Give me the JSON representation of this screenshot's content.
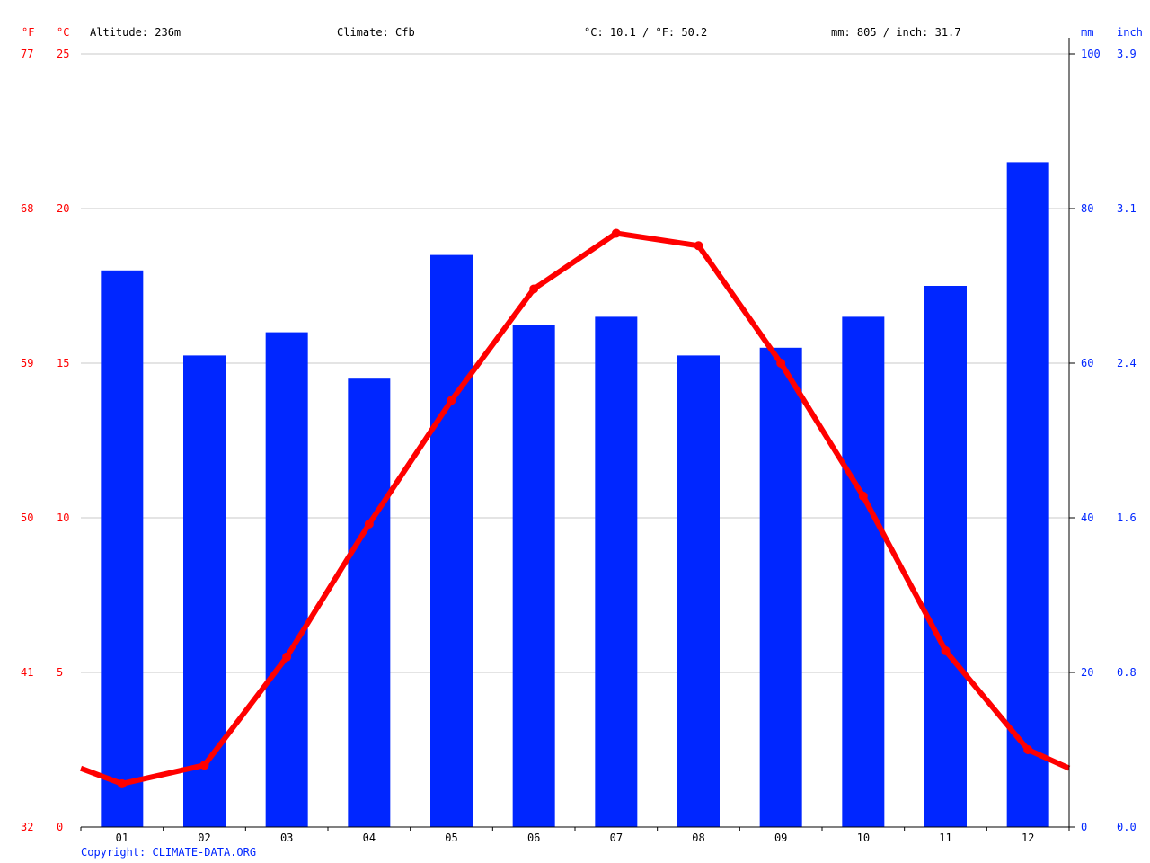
{
  "header": {
    "unit_left_f": "°F",
    "unit_left_c": "°C",
    "altitude": "Altitude: 236m",
    "climate": "Climate: Cfb",
    "temperature_avg": "°C: 10.1 / °F: 50.2",
    "precipitation_total": "mm: 805 / inch: 31.7",
    "unit_right_mm": "mm",
    "unit_right_inch": "inch"
  },
  "footer": {
    "copyright": "Copyright: CLIMATE-DATA.ORG"
  },
  "colors": {
    "temperature": "#ff0000",
    "precipitation": "#0026ff",
    "grid": "#c8c8c8",
    "axis": "#000000"
  },
  "chart_data": {
    "type": "bar+line",
    "categories": [
      "01",
      "02",
      "03",
      "04",
      "05",
      "06",
      "07",
      "08",
      "09",
      "10",
      "11",
      "12"
    ],
    "series": [
      {
        "type": "bar",
        "axis": "right",
        "values": [
          72,
          61,
          64,
          58,
          74,
          65,
          66,
          61,
          62,
          66,
          70,
          86
        ]
      },
      {
        "type": "line",
        "axis": "left",
        "values": [
          1.4,
          2.0,
          5.5,
          9.8,
          13.8,
          17.4,
          19.2,
          18.8,
          15.0,
          10.7,
          5.7,
          2.5
        ]
      }
    ],
    "line_edge_values": {
      "start": 1.9,
      "end": 1.9
    },
    "y_left": {
      "range": [
        0,
        25
      ],
      "ticks_c": [
        "0",
        "5",
        "10",
        "15",
        "20",
        "25"
      ],
      "ticks_f": [
        "32",
        "41",
        "50",
        "59",
        "68",
        "77"
      ]
    },
    "y_right": {
      "range": [
        0,
        100
      ],
      "ticks_mm": [
        "0",
        "20",
        "40",
        "60",
        "80",
        "100"
      ],
      "ticks_inch": [
        "0.0",
        "0.8",
        "1.6",
        "2.4",
        "3.1",
        "3.9"
      ]
    },
    "grid": true,
    "legend": "none"
  }
}
